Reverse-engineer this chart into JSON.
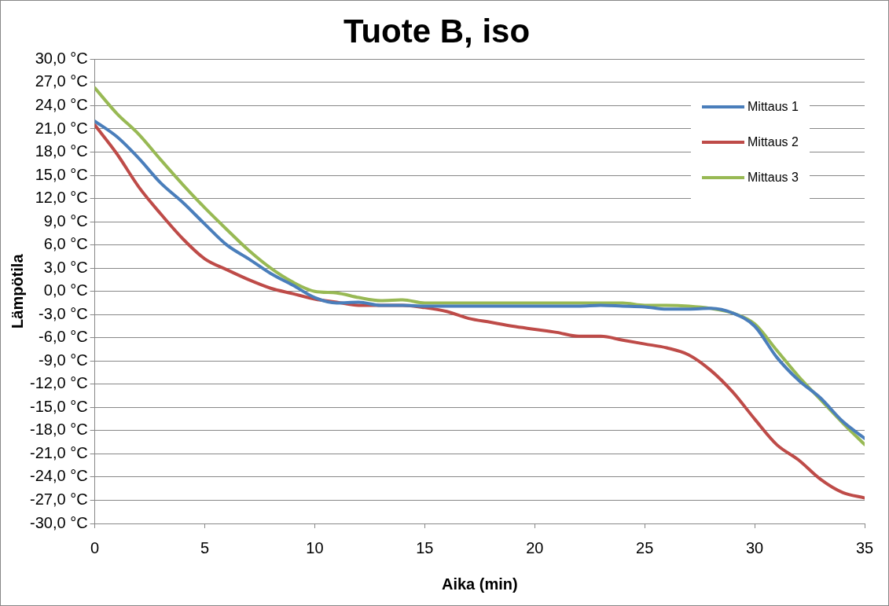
{
  "chart_data": {
    "type": "line",
    "title": "Tuote B, iso",
    "xlabel": "Aika (min)",
    "ylabel": "Lämpötila",
    "x": [
      0,
      1,
      2,
      3,
      4,
      5,
      6,
      7,
      8,
      9,
      10,
      11,
      12,
      13,
      14,
      15,
      16,
      17,
      18,
      19,
      20,
      21,
      22,
      23,
      24,
      25,
      26,
      27,
      28,
      29,
      30,
      31,
      32,
      33,
      34,
      35
    ],
    "series": [
      {
        "name": "Mittaus 1",
        "color": "#4a7ebb",
        "values": [
          22,
          20,
          17.2,
          14,
          11.5,
          8.7,
          6,
          4.2,
          2.3,
          0.8,
          -0.8,
          -1.5,
          -1.4,
          -1.8,
          -1.8,
          -1.9,
          -1.9,
          -1.9,
          -1.9,
          -1.9,
          -1.9,
          -1.9,
          -1.9,
          -1.8,
          -1.9,
          -2,
          -2.3,
          -2.3,
          -2.2,
          -2.8,
          -4.5,
          -8.5,
          -11.5,
          -13.8,
          -16.8,
          -19
        ]
      },
      {
        "name": "Mittaus 2",
        "color": "#be4b48",
        "values": [
          21.5,
          17.8,
          13.5,
          10,
          6.8,
          4.2,
          2.8,
          1.5,
          0.4,
          -0.3,
          -1,
          -1.4,
          -1.8,
          -1.8,
          -1.8,
          -2.1,
          -2.6,
          -3.5,
          -4,
          -4.5,
          -4.9,
          -5.3,
          -5.8,
          -5.8,
          -6.3,
          -6.8,
          -7.3,
          -8.2,
          -10.2,
          -13,
          -16.5,
          -19.8,
          -21.8,
          -24.3,
          -26,
          -26.7
        ]
      },
      {
        "name": "Mittaus 3",
        "color": "#98b954",
        "values": [
          26.3,
          23,
          20.3,
          17,
          13.8,
          10.8,
          8,
          5.3,
          3,
          1.2,
          0,
          -0.2,
          -0.8,
          -1.2,
          -1.1,
          -1.5,
          -1.5,
          -1.5,
          -1.5,
          -1.5,
          -1.5,
          -1.5,
          -1.5,
          -1.5,
          -1.5,
          -1.8,
          -1.8,
          -1.9,
          -2.2,
          -2.8,
          -4.2,
          -7.6,
          -11,
          -14,
          -17,
          -19.8
        ]
      }
    ],
    "xlim": [
      0,
      35
    ],
    "xticks": [
      0,
      5,
      10,
      15,
      20,
      25,
      30,
      35
    ],
    "ylim": [
      -30,
      30
    ],
    "yticks": [
      {
        "value": 30,
        "label": "30,0 °C"
      },
      {
        "value": 27,
        "label": "27,0 °C"
      },
      {
        "value": 24,
        "label": "24,0 °C"
      },
      {
        "value": 21,
        "label": "21,0 °C"
      },
      {
        "value": 18,
        "label": "18,0 °C"
      },
      {
        "value": 15,
        "label": "15,0 °C"
      },
      {
        "value": 12,
        "label": "12,0 °C"
      },
      {
        "value": 9,
        "label": "9,0 °C"
      },
      {
        "value": 6,
        "label": "6,0 °C"
      },
      {
        "value": 3,
        "label": "3,0 °C"
      },
      {
        "value": 0,
        "label": "0,0 °C"
      },
      {
        "value": -3,
        "label": "-3,0 °C"
      },
      {
        "value": -6,
        "label": "-6,0 °C"
      },
      {
        "value": -9,
        "label": "-9,0 °C"
      },
      {
        "value": -12,
        "label": "-12,0 °C"
      },
      {
        "value": -15,
        "label": "-15,0 °C"
      },
      {
        "value": -18,
        "label": "-18,0 °C"
      },
      {
        "value": -21,
        "label": "-21,0 °C"
      },
      {
        "value": -24,
        "label": "-24,0 °C"
      },
      {
        "value": -27,
        "label": "-27,0 °C"
      },
      {
        "value": -30,
        "label": "-30,0 °C"
      }
    ],
    "grid": "y",
    "legend": "top right",
    "marker": "none",
    "line_style": "solid"
  }
}
